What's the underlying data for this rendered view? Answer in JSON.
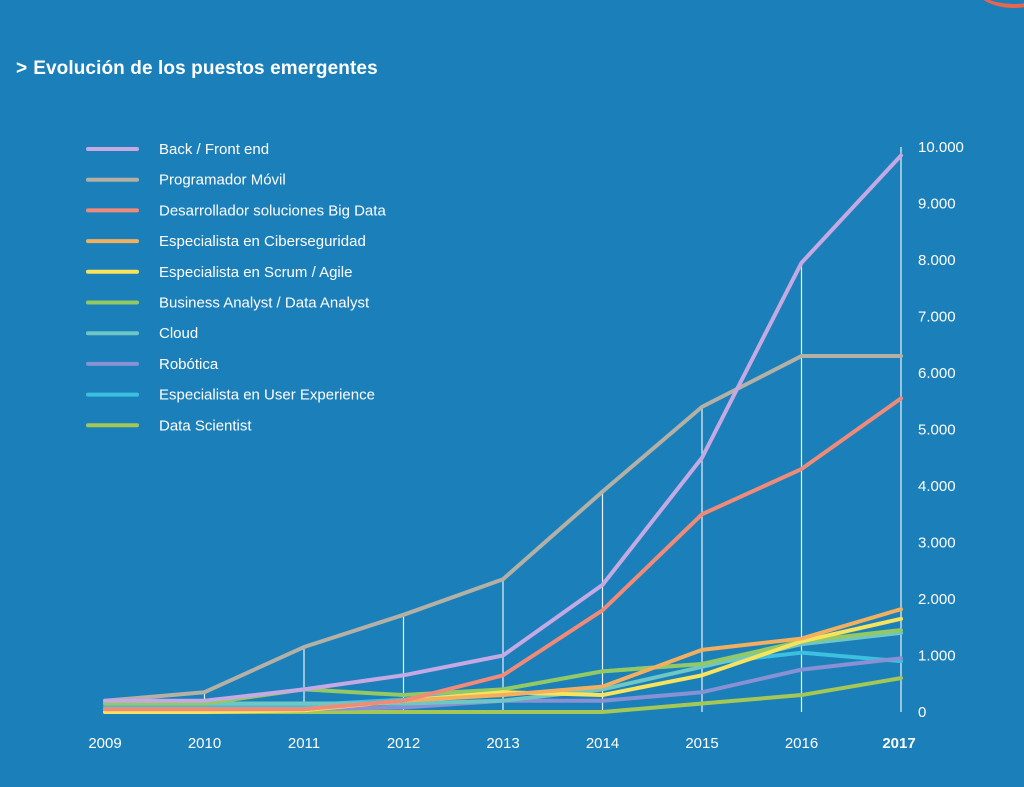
{
  "title": "Evolución de los puestos emergentes",
  "title_prefix": ">",
  "colors": {
    "background": "#1b7fba",
    "guide": "#ffffff"
  },
  "chart_data": {
    "type": "line",
    "title": "Evolución de los puestos emergentes",
    "xlabel": "",
    "ylabel": "",
    "x": [
      "2009",
      "2010",
      "2011",
      "2012",
      "2013",
      "2014",
      "2015",
      "2016",
      "2017"
    ],
    "x_highlight": "2017",
    "yticks": [
      0,
      1000,
      2000,
      3000,
      4000,
      5000,
      6000,
      7000,
      8000,
      9000,
      10000
    ],
    "ytick_labels": [
      "0",
      "1.000",
      "2.000",
      "3.000",
      "4.000",
      "5.000",
      "6.000",
      "7.000",
      "8.000",
      "9.000",
      "10.000"
    ],
    "ylim": [
      0,
      10000
    ],
    "grid": false,
    "legend_position": "top-left",
    "y_axis_position": "right",
    "series": [
      {
        "name": "Back / Front end",
        "color": "#c4a9e2",
        "values": [
          200,
          200,
          400,
          650,
          1000,
          2250,
          4500,
          7950,
          9850
        ]
      },
      {
        "name": "Programador Móvil",
        "color": "#b3b0a6",
        "values": [
          200,
          350,
          1150,
          1720,
          2350,
          3900,
          5400,
          6300,
          6300
        ]
      },
      {
        "name": "Desarrollador soluciones Big Data",
        "color": "#ef8b78",
        "values": [
          50,
          50,
          50,
          200,
          650,
          1800,
          3500,
          4300,
          5550
        ]
      },
      {
        "name": "Especialista en Ciberseguridad",
        "color": "#f2b05e",
        "values": [
          50,
          50,
          50,
          200,
          300,
          450,
          1100,
          1300,
          1820
        ]
      },
      {
        "name": "Especialista en Scrum / Agile",
        "color": "#f8e35d",
        "values": [
          0,
          0,
          30,
          200,
          350,
          300,
          650,
          1250,
          1650
        ]
      },
      {
        "name": "Business Analyst / Data Analyst",
        "color": "#93c862",
        "values": [
          150,
          150,
          400,
          300,
          400,
          720,
          850,
          1250,
          1450
        ]
      },
      {
        "name": "Cloud",
        "color": "#6fc7c5",
        "values": [
          150,
          150,
          150,
          150,
          200,
          400,
          800,
          1200,
          1400
        ]
      },
      {
        "name": "Robótica",
        "color": "#8791d3",
        "values": [
          50,
          50,
          50,
          80,
          200,
          200,
          350,
          750,
          950
        ]
      },
      {
        "name": "Especialista en User Experience",
        "color": "#3cc0e0",
        "values": [
          100,
          100,
          120,
          220,
          400,
          720,
          850,
          1050,
          900
        ]
      },
      {
        "name": "Data Scientist",
        "color": "#a5c755",
        "values": [
          0,
          0,
          0,
          0,
          0,
          0,
          150,
          300,
          600
        ]
      }
    ]
  }
}
